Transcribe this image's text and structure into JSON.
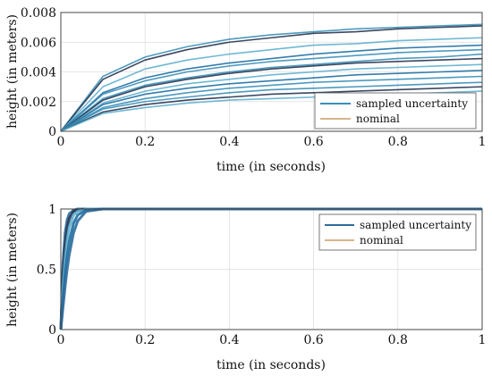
{
  "chart_data": [
    {
      "type": "line",
      "xlabel": "time (in seconds)",
      "ylabel": "height (in meters)",
      "xlim": [
        0,
        1
      ],
      "ylim": [
        0,
        0.008
      ],
      "xticks": [
        "0",
        "0.2",
        "0.4",
        "0.6",
        "0.8",
        "1"
      ],
      "yticks": [
        "0",
        "0.002",
        "0.004",
        "0.006",
        "0.008"
      ],
      "grid": true,
      "legend": "bottom-right",
      "legend_entries": [
        "sampled uncertainty",
        "nominal"
      ],
      "colors": {
        "sampled": "#3a8fb8",
        "nominal": "#d8b48a",
        "dark": "#26344f"
      },
      "x": [
        0,
        0.1,
        0.2,
        0.3,
        0.4,
        0.5,
        0.6,
        0.7,
        0.8,
        0.9,
        1.0
      ],
      "series": [
        {
          "values": [
            0,
            0.0037,
            0.005,
            0.0057,
            0.0062,
            0.0065,
            0.0067,
            0.0069,
            0.007,
            0.0071,
            0.0072
          ]
        },
        {
          "values": [
            0,
            0.0035,
            0.0048,
            0.0055,
            0.006,
            0.0063,
            0.0066,
            0.0067,
            0.0069,
            0.007,
            0.0071
          ]
        },
        {
          "values": [
            0,
            0.003,
            0.0042,
            0.0048,
            0.0052,
            0.0055,
            0.0058,
            0.0059,
            0.0061,
            0.0062,
            0.0063
          ]
        },
        {
          "values": [
            0,
            0.0026,
            0.0036,
            0.0042,
            0.0046,
            0.0049,
            0.0052,
            0.0054,
            0.0056,
            0.0057,
            0.0058
          ]
        },
        {
          "values": [
            0,
            0.0025,
            0.0034,
            0.004,
            0.0044,
            0.0047,
            0.0049,
            0.0051,
            0.0053,
            0.0054,
            0.0055
          ]
        },
        {
          "values": [
            0,
            0.0022,
            0.0031,
            0.0036,
            0.004,
            0.0043,
            0.0045,
            0.0047,
            0.0049,
            0.005,
            0.0052
          ]
        },
        {
          "values": [
            0,
            0.0021,
            0.003,
            0.0035,
            0.0039,
            0.0042,
            0.0044,
            0.0046,
            0.0047,
            0.0048,
            0.0049
          ]
        },
        {
          "values": [
            0,
            0.0019,
            0.0027,
            0.0032,
            0.0035,
            0.0038,
            0.004,
            0.0042,
            0.0043,
            0.0044,
            0.0045
          ]
        },
        {
          "values": [
            0,
            0.0018,
            0.0025,
            0.0029,
            0.0032,
            0.0034,
            0.0036,
            0.0038,
            0.0039,
            0.004,
            0.0041
          ]
        },
        {
          "values": [
            0,
            0.0016,
            0.0022,
            0.0026,
            0.0029,
            0.0031,
            0.0033,
            0.0034,
            0.0035,
            0.0036,
            0.0037
          ]
        },
        {
          "values": [
            0,
            0.0015,
            0.002,
            0.0023,
            0.0026,
            0.0028,
            0.0029,
            0.003,
            0.0031,
            0.0032,
            0.0033
          ]
        },
        {
          "values": [
            0,
            0.0013,
            0.0018,
            0.0021,
            0.0023,
            0.0025,
            0.0026,
            0.0027,
            0.0028,
            0.0029,
            0.003
          ]
        },
        {
          "values": [
            0,
            0.0012,
            0.0016,
            0.0019,
            0.0021,
            0.0022,
            0.0023,
            0.0024,
            0.0025,
            0.0026,
            0.0027
          ]
        }
      ]
    },
    {
      "type": "line",
      "xlabel": "time (in seconds)",
      "ylabel": "height (in meters)",
      "xlim": [
        0,
        1
      ],
      "ylim": [
        0,
        1
      ],
      "xticks": [
        "0",
        "0.2",
        "0.4",
        "0.6",
        "0.8",
        "1"
      ],
      "yticks": [
        "0",
        "0.5",
        "1"
      ],
      "grid": true,
      "legend": "top-right",
      "legend_entries": [
        "sampled uncertainty",
        "nominal"
      ],
      "colors": {
        "sampled": "#2f6d9c",
        "nominal": "#d8b48a",
        "dark": "#26344f"
      },
      "x": [
        0,
        0.005,
        0.01,
        0.015,
        0.02,
        0.03,
        0.04,
        0.06,
        0.1,
        0.2,
        0.5,
        1.0
      ],
      "series": [
        {
          "values": [
            0,
            0.55,
            0.8,
            0.91,
            0.96,
            0.99,
            1.0,
            1.0,
            1.0,
            1.0,
            1.0,
            1.0
          ]
        },
        {
          "values": [
            0,
            0.45,
            0.7,
            0.84,
            0.92,
            0.98,
            0.99,
            1.0,
            1.0,
            1.0,
            1.0,
            1.0
          ]
        },
        {
          "values": [
            0,
            0.35,
            0.58,
            0.74,
            0.85,
            0.95,
            0.98,
            1.0,
            1.0,
            1.0,
            1.0,
            1.0
          ]
        },
        {
          "values": [
            0,
            0.25,
            0.45,
            0.61,
            0.73,
            0.88,
            0.95,
            0.99,
            1.0,
            1.0,
            1.0,
            1.0
          ]
        },
        {
          "values": [
            0,
            0.18,
            0.35,
            0.5,
            0.62,
            0.8,
            0.9,
            0.98,
            1.0,
            1.0,
            1.0,
            1.0
          ]
        }
      ]
    }
  ]
}
